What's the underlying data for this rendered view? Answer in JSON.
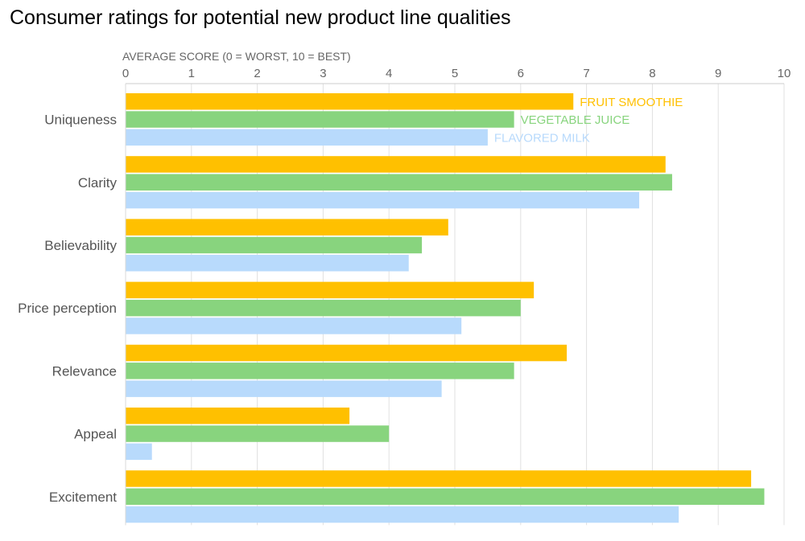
{
  "chart_data": {
    "type": "bar",
    "orientation": "horizontal",
    "title": "Consumer ratings for potential new product line qualities",
    "xlabel": "AVERAGE SCORE (0 = WORST, 10 = BEST)",
    "ylabel": "",
    "xlim": [
      0,
      10
    ],
    "ticks": [
      "0",
      "1",
      "2",
      "3",
      "4",
      "5",
      "6",
      "7",
      "8",
      "9",
      "10"
    ],
    "grid": true,
    "legend": "inline-labels-on-first-category",
    "categories": [
      "Uniqueness",
      "Clarity",
      "Believability",
      "Price perception",
      "Relevance",
      "Appeal",
      "Excitement"
    ],
    "series": [
      {
        "name": "FRUIT SMOOTHIE",
        "color": "#FFC000",
        "values": [
          6.8,
          8.2,
          4.9,
          6.2,
          6.7,
          3.4,
          9.5
        ]
      },
      {
        "name": "VEGETABLE JUICE",
        "color": "#88D47E",
        "values": [
          5.9,
          8.3,
          4.5,
          6.0,
          5.9,
          4.0,
          9.7
        ]
      },
      {
        "name": "FLAVORED MILK",
        "color": "#B8DAFC",
        "values": [
          5.5,
          7.8,
          4.3,
          5.1,
          4.8,
          0.4,
          8.4
        ]
      }
    ]
  }
}
